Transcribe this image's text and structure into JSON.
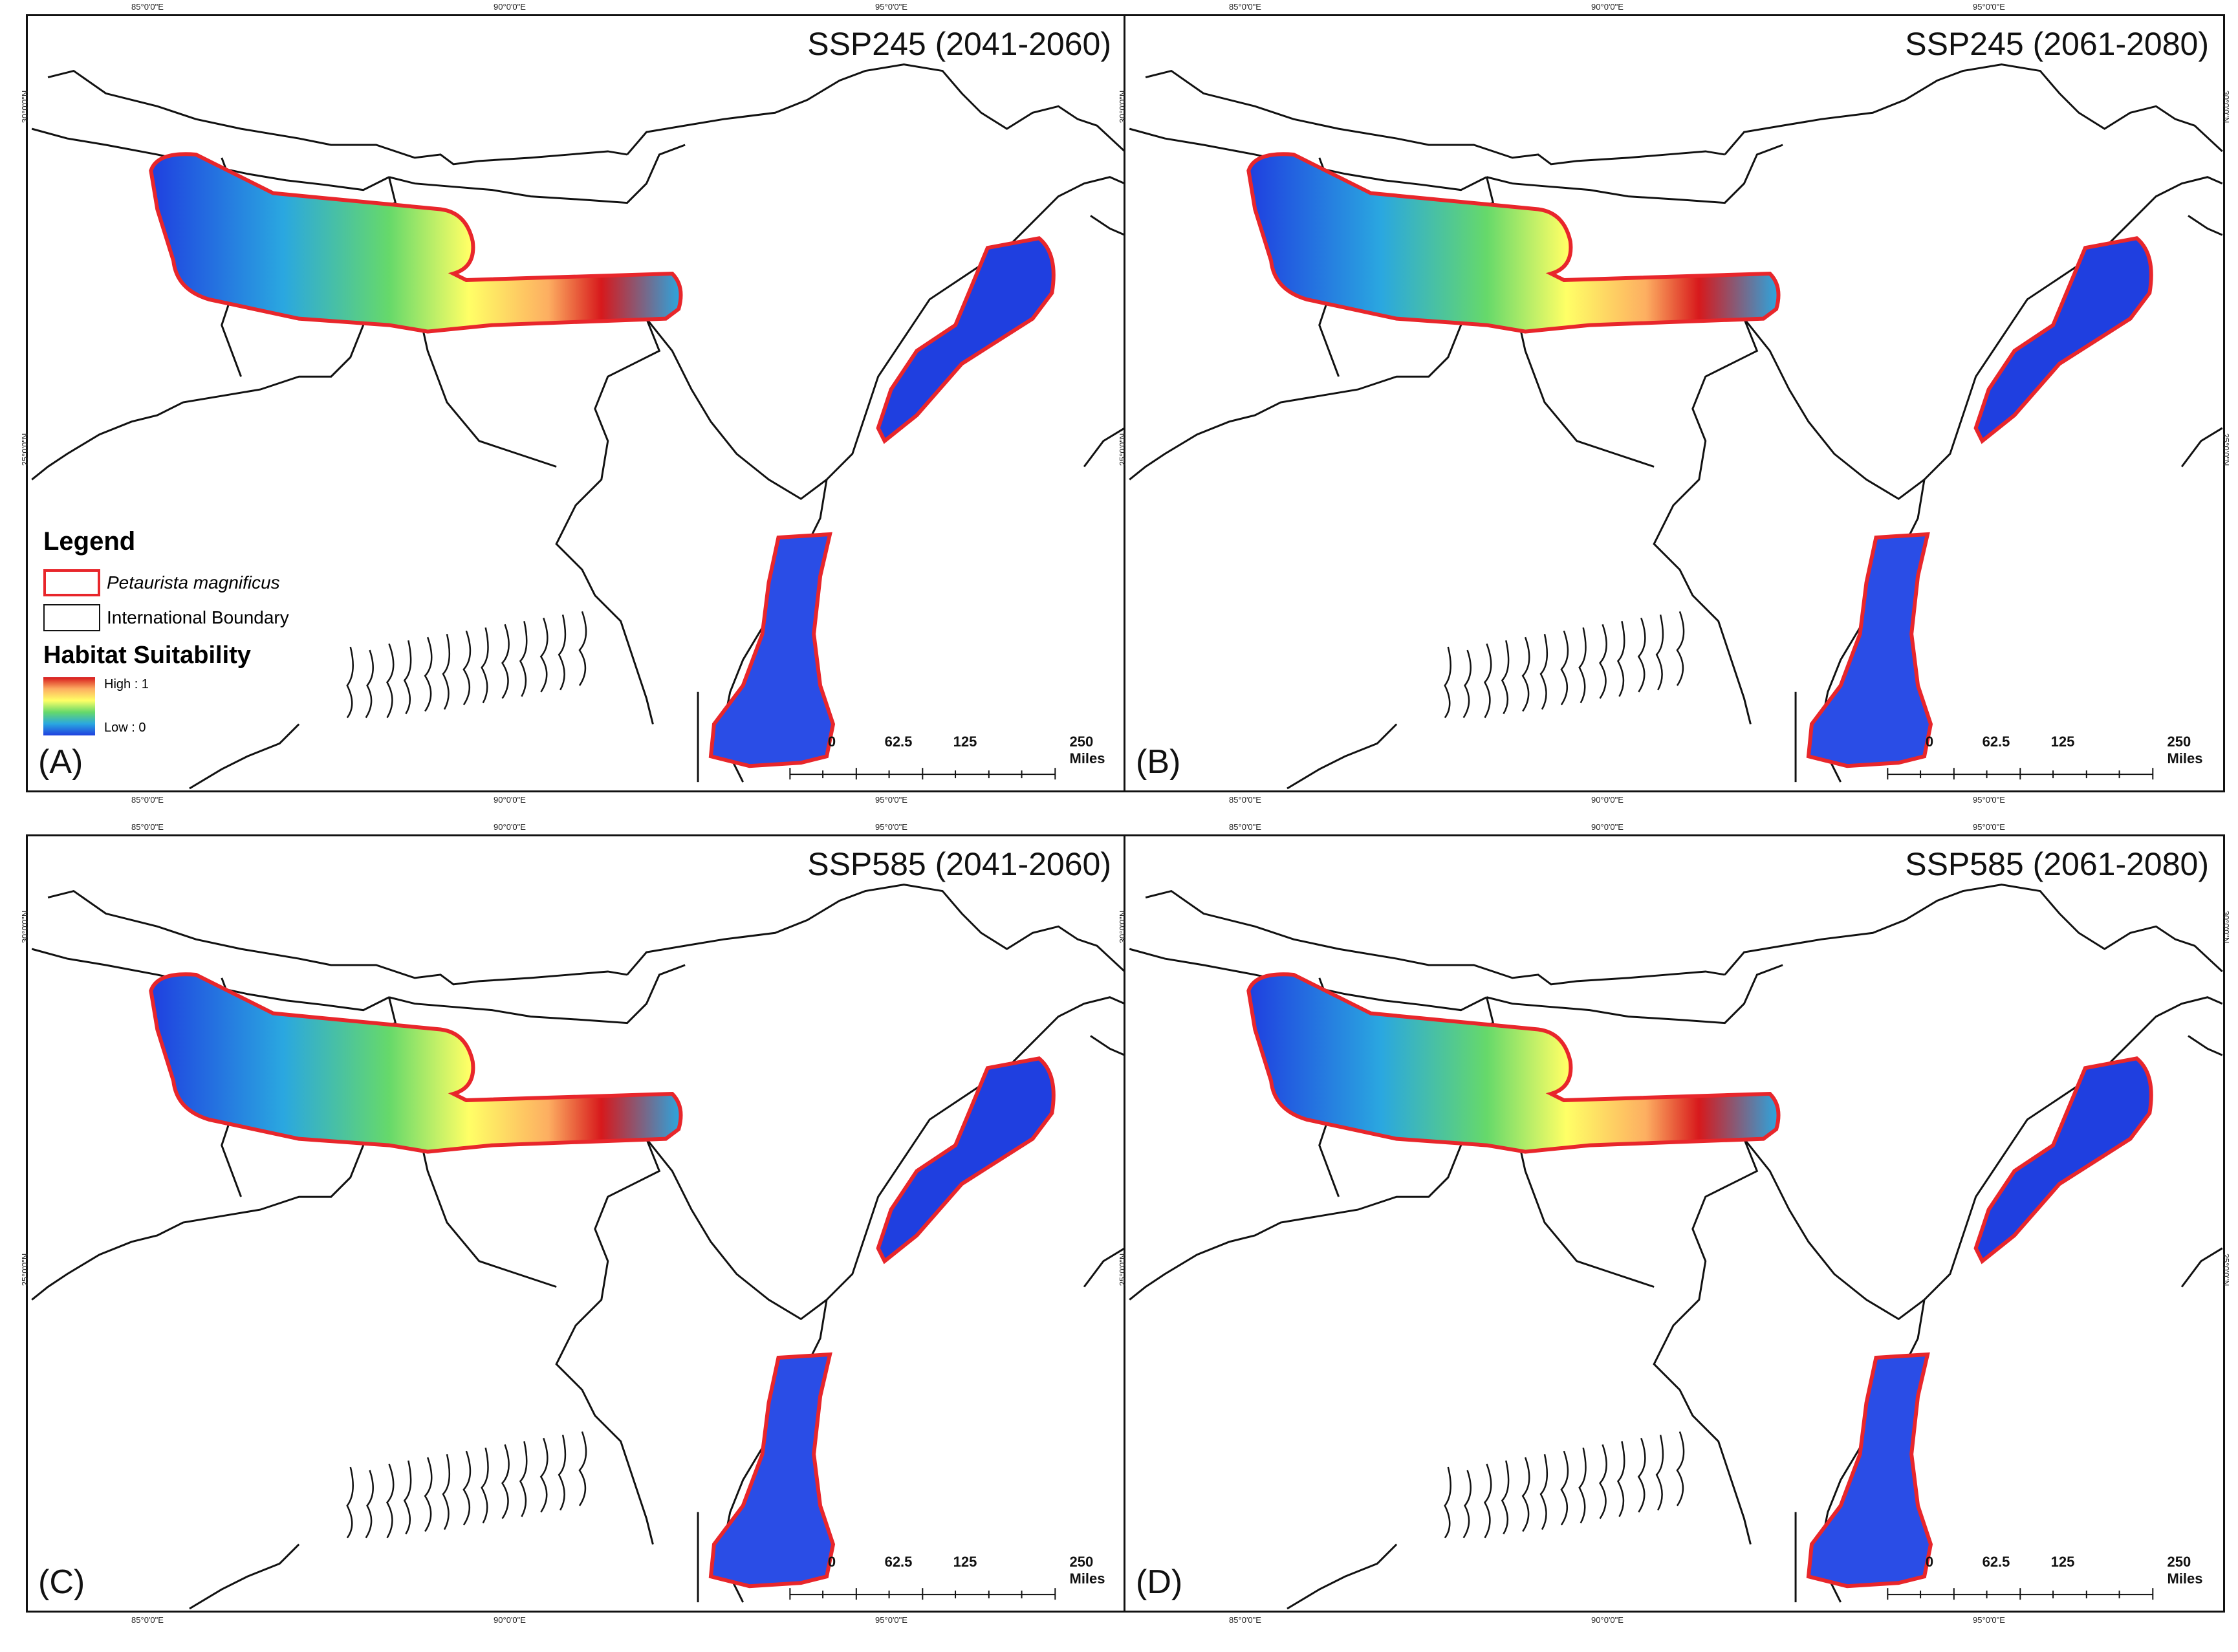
{
  "panels": [
    {
      "id": "A",
      "label": "(A)",
      "title": "SSP245 (2041-2060)"
    },
    {
      "id": "B",
      "label": "(B)",
      "title": "SSP245 (2061-2080)"
    },
    {
      "id": "C",
      "label": "(C)",
      "title": "SSP585 (2041-2060)"
    },
    {
      "id": "D",
      "label": "(D)",
      "title": "SSP585 (2061-2080)"
    }
  ],
  "graticule": {
    "longitudes": [
      "85°0'0\"E",
      "90°0'0\"E",
      "95°0'0\"E"
    ],
    "latitudes": [
      "30°0'0\"N",
      "25°0'0\"N"
    ]
  },
  "scalebar": {
    "labels": [
      "0",
      "62.5",
      "125",
      "250 Miles"
    ]
  },
  "legend": {
    "title": "Legend",
    "species": "Petaurista magnificus",
    "boundary": "International Boundary",
    "suitability_title": "Habitat Suitability",
    "high": "High : 1",
    "low": "Low : 0"
  },
  "colors": {
    "range_outline": "#e8262b",
    "boundary": "#111111",
    "suitability_low": "#1f3fe0",
    "suitability_high": "#d7191c"
  }
}
